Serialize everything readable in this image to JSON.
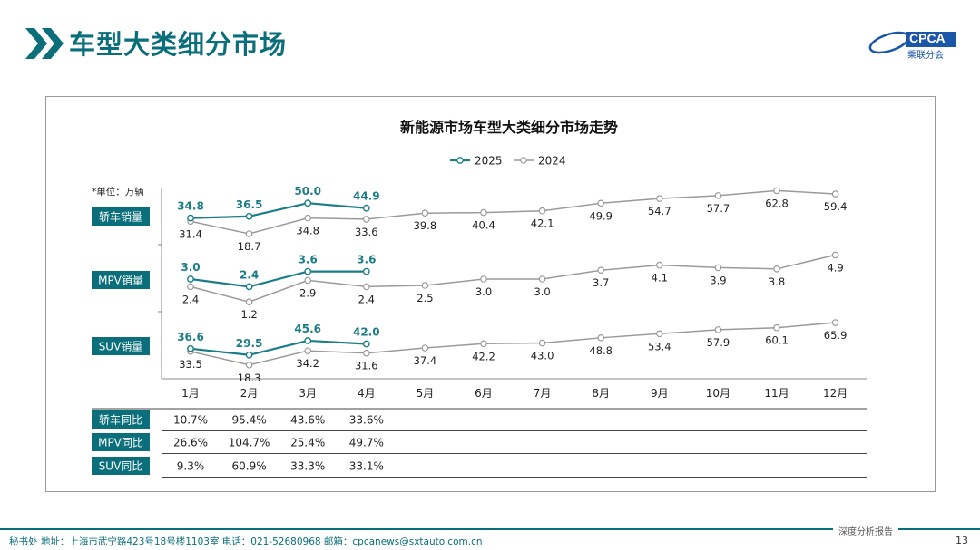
{
  "header": {
    "title": "车型大类细分市场",
    "logo_text": "CPCA",
    "logo_sub": "乘联分会",
    "brand_color": "#0a6f7b"
  },
  "chart_data": {
    "type": "line",
    "title": "新能源市场车型大类细分市场走势",
    "unit_note": "*单位：万辆",
    "legend": [
      "2025",
      "2024"
    ],
    "legend_placement": "top",
    "categories": [
      "1月",
      "2月",
      "3月",
      "4月",
      "5月",
      "6月",
      "7月",
      "8月",
      "9月",
      "10月",
      "11月",
      "12月"
    ],
    "colors": {
      "2025": "#1b7d87",
      "2024": "#9a9a9a"
    },
    "panels": [
      {
        "label": "轿车销量",
        "ylim": [
          15,
          65
        ],
        "series": [
          {
            "name": "2025",
            "values": [
              34.8,
              36.5,
              50.0,
              44.9
            ]
          },
          {
            "name": "2024",
            "values": [
              31.4,
              18.7,
              34.8,
              33.6,
              39.8,
              40.4,
              42.1,
              49.9,
              54.7,
              57.7,
              62.8,
              59.4
            ]
          }
        ]
      },
      {
        "label": "MPV销量",
        "ylim": [
          1,
          5
        ],
        "series": [
          {
            "name": "2025",
            "values": [
              3.0,
              2.4,
              3.6,
              3.6
            ]
          },
          {
            "name": "2024",
            "values": [
              2.4,
              1.2,
              2.9,
              2.4,
              2.5,
              3.0,
              3.0,
              3.7,
              4.1,
              3.9,
              3.8,
              4.9
            ]
          }
        ]
      },
      {
        "label": "SUV销量",
        "ylim": [
          15,
          70
        ],
        "series": [
          {
            "name": "2025",
            "values": [
              36.6,
              29.5,
              45.6,
              42.0
            ]
          },
          {
            "name": "2024",
            "values": [
              33.5,
              18.3,
              34.2,
              31.6,
              37.4,
              42.2,
              43.0,
              48.8,
              53.4,
              57.9,
              60.1,
              65.9
            ]
          }
        ]
      }
    ],
    "table": {
      "rows": [
        {
          "label": "轿车同比",
          "values": [
            "10.7%",
            "95.4%",
            "43.6%",
            "33.6%"
          ]
        },
        {
          "label": "MPV同比",
          "values": [
            "26.6%",
            "104.7%",
            "25.4%",
            "49.7%"
          ]
        },
        {
          "label": "SUV同比",
          "values": [
            "9.3%",
            "60.9%",
            "33.3%",
            "33.1%"
          ]
        }
      ]
    }
  },
  "footer": {
    "tag": "深度分析报告",
    "contact": "秘书处   地址：上海市武宁路423号18号楼1103室   电话：021-52680968   邮箱：cpcanews@sxtauto.com.cn",
    "page": "13"
  }
}
